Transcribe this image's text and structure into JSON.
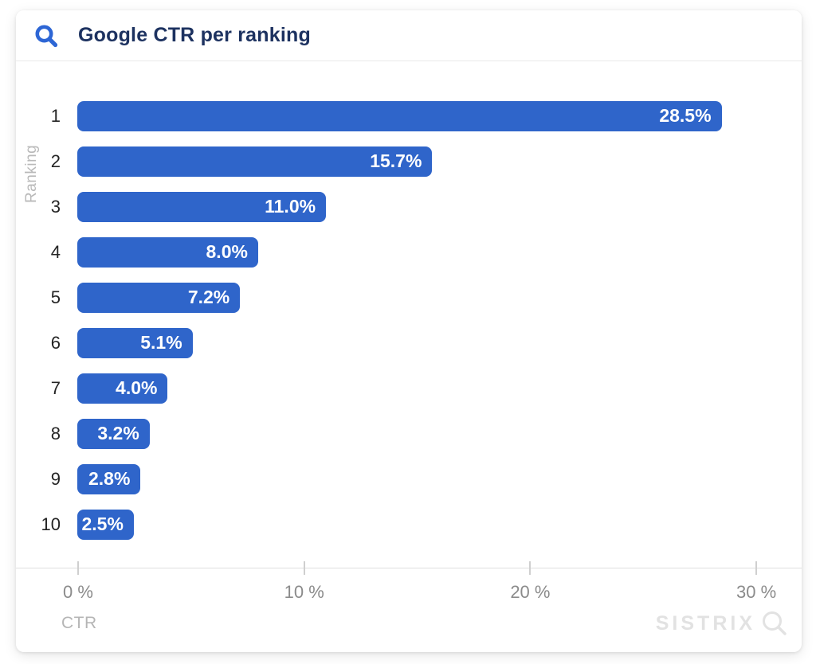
{
  "header": {
    "title": "Google CTR per ranking"
  },
  "chart_data": {
    "type": "bar",
    "orientation": "horizontal",
    "title": "Google CTR per ranking",
    "categories": [
      "1",
      "2",
      "3",
      "4",
      "5",
      "6",
      "7",
      "8",
      "9",
      "10"
    ],
    "values": [
      28.5,
      15.7,
      11.0,
      8.0,
      7.2,
      5.1,
      4.0,
      3.2,
      2.8,
      2.5
    ],
    "value_labels": [
      "28.5%",
      "15.7%",
      "11.0%",
      "8.0%",
      "7.2%",
      "5.1%",
      "4.0%",
      "3.2%",
      "2.8%",
      "2.5%"
    ],
    "xlabel": "CTR",
    "ylabel": "Ranking",
    "xlim": [
      0,
      31.3
    ],
    "x_tick_values": [
      0,
      10,
      20,
      30
    ],
    "x_tick_labels": [
      "0 %",
      "10 %",
      "20 %",
      "30 %"
    ],
    "grid": false,
    "legend": null,
    "bar_color": "#2F65CA",
    "bar_label_color": "#FFFFFF"
  },
  "footer": {
    "brand": "SISTRIX",
    "brand_icon": "magnifier-icon"
  },
  "colors": {
    "title": "#1D3260",
    "header_icon_blue": "#2D66D5",
    "axis_text": "#8B8B8B",
    "axis_muted_text": "#B5B5B5",
    "brand_gray": "#E2E2E2",
    "divider": "#E9E9E9"
  }
}
